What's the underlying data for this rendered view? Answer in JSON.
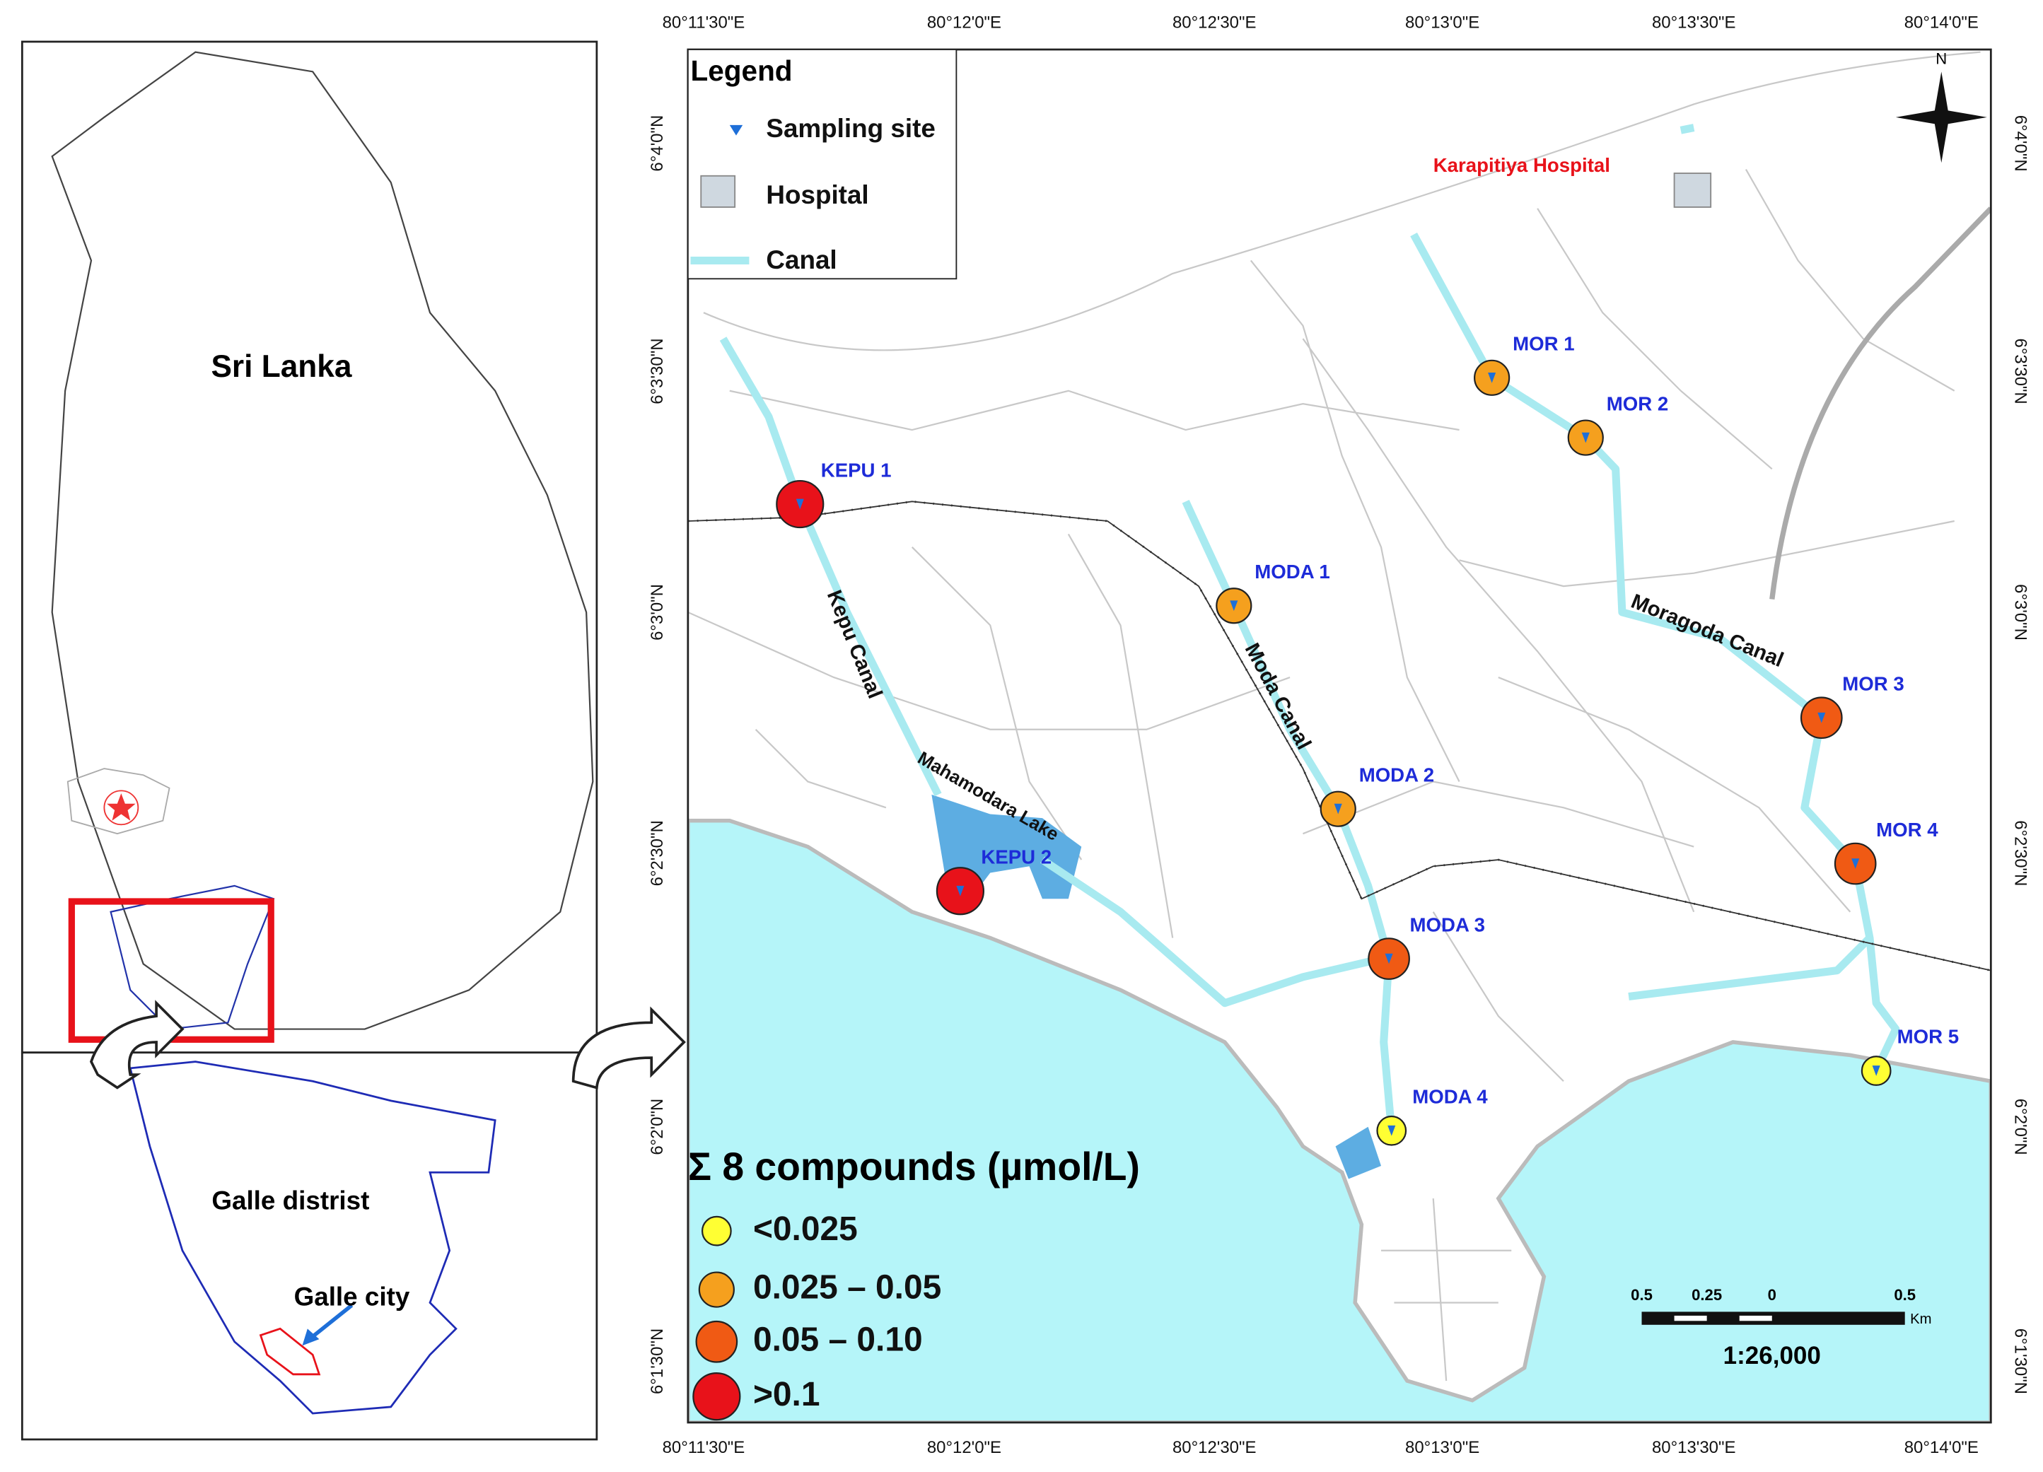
{
  "inset_map": {
    "country_label": "Sri Lanka",
    "district_label": "Galle distrist",
    "city_label": "Galle city"
  },
  "main_map": {
    "longitude_labels": [
      "80°11'30\"E",
      "80°12'0\"E",
      "80°12'30\"E",
      "80°13'0\"E",
      "80°13'30\"E",
      "80°14'0\"E"
    ],
    "latitude_labels": [
      "6°4'0\"N",
      "6°3'30\"N",
      "6°3'0\"N",
      "6°2'30\"N",
      "6°2'0\"N",
      "6°1'30\"N"
    ],
    "legend": {
      "title": "Legend",
      "items": [
        "Sampling site",
        "Hospital",
        "Canal"
      ]
    },
    "hospital_label": "Karapitiya Hospital",
    "canal_labels": [
      "Kepu Canal",
      "Moda Canal",
      "Moragoda Canal",
      "Mahamodara Lake"
    ],
    "north_label": "N",
    "concentration_legend": {
      "title": "Σ 8 compounds (µmol/L)",
      "classes": [
        {
          "label": "<0.025",
          "color": "#ffff33"
        },
        {
          "label": "0.025 – 0.05",
          "color": "#f5a01e"
        },
        {
          "label": "0.05 – 0.10",
          "color": "#f05a14"
        },
        {
          "label": ">0.1",
          "color": "#e8121a"
        }
      ]
    },
    "scale_bar": {
      "labels": [
        "0.5",
        "0.25",
        "0",
        "0.5"
      ],
      "unit": "Km",
      "ratio": "1:26,000"
    },
    "sites": [
      {
        "name": "KEPU 1",
        "color": "#e8121a"
      },
      {
        "name": "KEPU 2",
        "color": "#e8121a"
      },
      {
        "name": "MODA 1",
        "color": "#f5a01e"
      },
      {
        "name": "MODA 2",
        "color": "#f5a01e"
      },
      {
        "name": "MODA 3",
        "color": "#f05a14"
      },
      {
        "name": "MODA 4",
        "color": "#ffff33"
      },
      {
        "name": "MOR 1",
        "color": "#f5a01e"
      },
      {
        "name": "MOR 2",
        "color": "#f5a01e"
      },
      {
        "name": "MOR 3",
        "color": "#f05a14"
      },
      {
        "name": "MOR 4",
        "color": "#f05a14"
      },
      {
        "name": "MOR 5",
        "color": "#ffff33"
      }
    ]
  }
}
